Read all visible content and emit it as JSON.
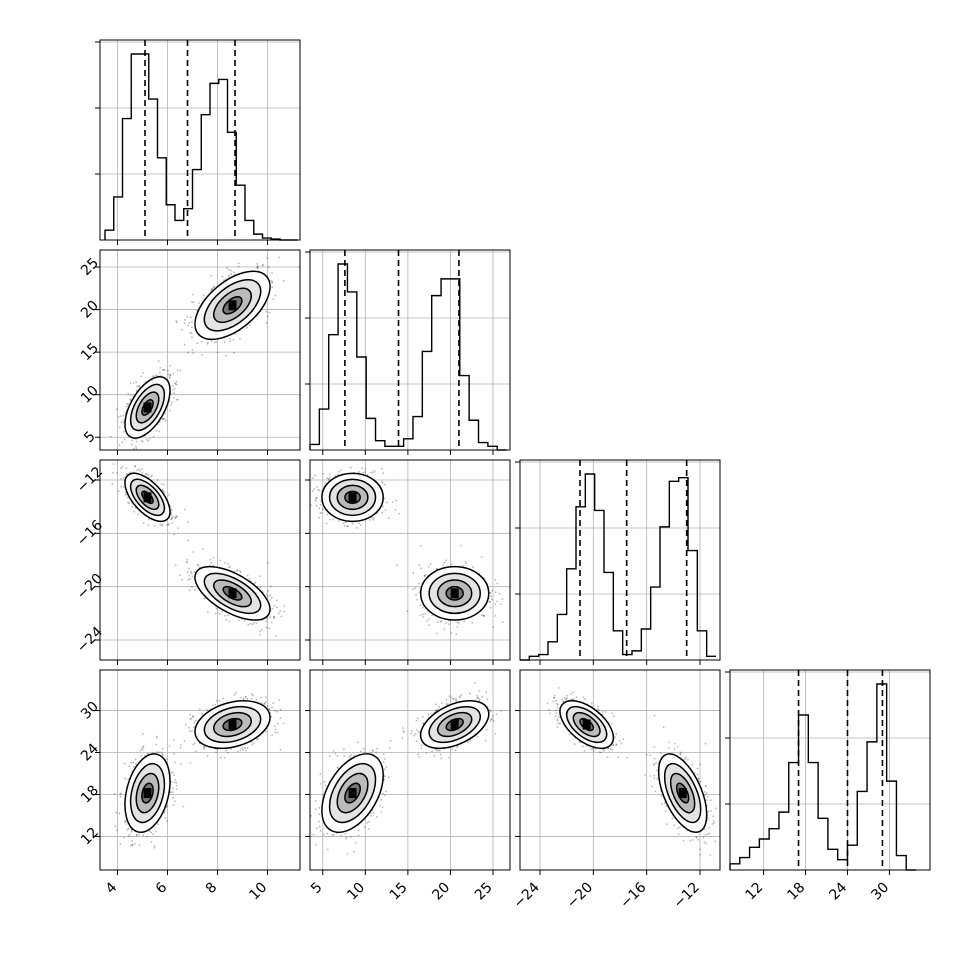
{
  "chart_data": {
    "type": "corner",
    "grid": true,
    "parameters": [
      {
        "range": [
          3.3,
          11.3
        ],
        "ticks": [
          4,
          6,
          8,
          10
        ],
        "tick_labels": [
          "4",
          "6",
          "8",
          "10"
        ]
      },
      {
        "range": [
          3.5,
          27.0
        ],
        "ticks": [
          5,
          10,
          15,
          20,
          25
        ],
        "tick_labels": [
          "5",
          "10",
          "15",
          "20",
          "25"
        ]
      },
      {
        "range": [
          -25.5,
          -10.5
        ],
        "ticks": [
          -24,
          -20,
          -16,
          -12
        ],
        "tick_labels": [
          "−24",
          "−20",
          "−16",
          "−12"
        ]
      },
      {
        "range": [
          7.2,
          35.8
        ],
        "ticks": [
          12,
          18,
          24,
          30
        ],
        "tick_labels": [
          "12",
          "18",
          "24",
          "30"
        ]
      }
    ],
    "quantiles": [
      [
        5.1,
        6.8,
        8.7
      ],
      [
        7.6,
        13.9,
        21.0
      ],
      [
        -21.0,
        -17.5,
        -13.0
      ],
      [
        17.0,
        24.0,
        29.0
      ]
    ],
    "histograms": [
      {
        "bins": [
          3.5,
          3.85,
          4.2,
          4.55,
          4.9,
          5.25,
          5.6,
          5.95,
          6.3,
          6.65,
          7.0,
          7.35,
          7.7,
          8.05,
          8.4,
          8.75,
          9.1,
          9.45,
          9.8,
          10.15,
          10.5,
          10.85,
          11.2
        ],
        "counts": [
          0.05,
          0.22,
          0.62,
          0.95,
          0.95,
          0.72,
          0.42,
          0.18,
          0.1,
          0.16,
          0.36,
          0.64,
          0.8,
          0.82,
          0.55,
          0.28,
          0.1,
          0.03,
          0.01,
          0.005,
          0.0,
          0.0
        ]
      },
      {
        "bins": [
          3.5,
          4.6,
          5.7,
          6.8,
          7.9,
          9.0,
          10.1,
          11.2,
          12.3,
          13.4,
          14.5,
          15.6,
          16.7,
          17.8,
          18.9,
          20.0,
          21.1,
          22.2,
          23.3,
          24.4,
          25.5,
          26.6
        ],
        "counts": [
          0.03,
          0.22,
          0.62,
          1.0,
          0.85,
          0.5,
          0.17,
          0.05,
          0.02,
          0.02,
          0.06,
          0.18,
          0.53,
          0.83,
          0.92,
          0.92,
          0.4,
          0.16,
          0.04,
          0.02,
          0.0
        ]
      },
      {
        "bins": [
          -25.5,
          -24.8,
          -24.1,
          -23.4,
          -22.7,
          -22.0,
          -21.3,
          -20.6,
          -19.9,
          -19.2,
          -18.5,
          -17.8,
          -17.1,
          -16.4,
          -15.7,
          -15.0,
          -14.3,
          -13.6,
          -12.9,
          -12.2,
          -11.5,
          -10.8
        ],
        "counts": [
          0.0,
          0.02,
          0.03,
          0.1,
          0.25,
          0.5,
          0.84,
          1.02,
          0.82,
          0.48,
          0.16,
          0.03,
          0.05,
          0.17,
          0.4,
          0.73,
          0.98,
          1.0,
          0.6,
          0.16,
          0.02
        ]
      },
      {
        "bins": [
          7.2,
          8.6,
          10.0,
          11.4,
          12.8,
          14.2,
          15.6,
          17.0,
          18.4,
          19.8,
          21.2,
          22.6,
          24.0,
          25.4,
          26.8,
          28.2,
          29.6,
          31.0,
          32.4,
          33.8
        ],
        "counts": [
          0.03,
          0.06,
          0.11,
          0.15,
          0.2,
          0.28,
          0.52,
          0.75,
          0.52,
          0.25,
          0.1,
          0.05,
          0.12,
          0.38,
          0.62,
          0.9,
          0.43,
          0.07,
          0.0
        ]
      }
    ],
    "clusters": [
      {
        "mean": [
          5.2,
          8.5,
          -13.3,
          18.2
        ],
        "sd": [
          0.45,
          1.8,
          0.9,
          2.8
        ]
      },
      {
        "mean": [
          8.6,
          20.5,
          -20.5,
          28.0
        ],
        "sd": [
          0.75,
          2.0,
          1.0,
          1.7
        ]
      }
    ]
  }
}
